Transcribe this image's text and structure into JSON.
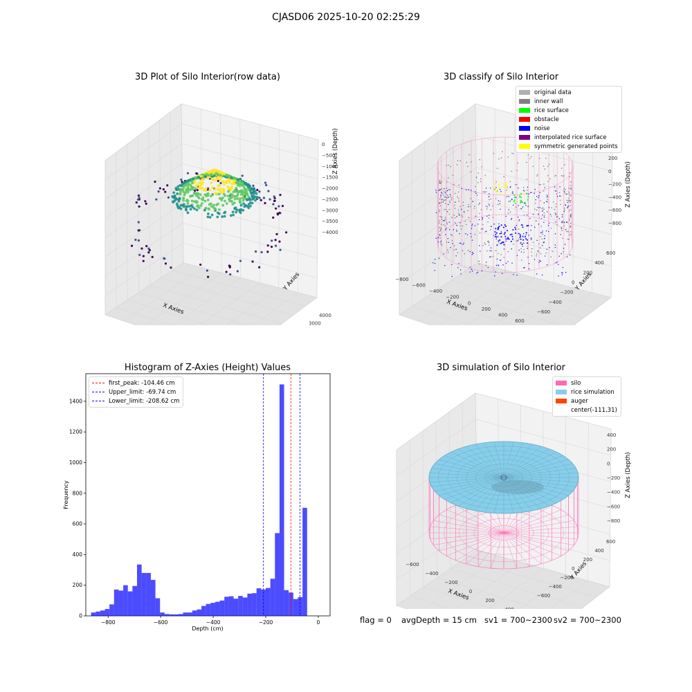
{
  "suptitle": "CJASD06 2025-10-20 02:25:29",
  "panel_raw": {
    "title": "3D Plot of Silo Interior(row data)",
    "xlabel": "X Axies",
    "ylabel": "Y Axies",
    "zlabel": "Z Axies (Depth)",
    "xticks": [
      "−4000",
      "−3000",
      "−2000",
      "−1000",
      "0",
      "1000",
      "2000",
      "3000"
    ],
    "yticks": [
      "−3000",
      "−2000",
      "−1000",
      "0",
      "1000",
      "2000",
      "3000",
      "4000"
    ],
    "zticks": [
      "0",
      "−500",
      "−1000",
      "−1500",
      "−2000",
      "−2500",
      "−3000",
      "−3500",
      "−4000"
    ],
    "colormap": [
      "#440154",
      "#3b528b",
      "#21918c",
      "#5ec962",
      "#fde725"
    ]
  },
  "panel_classify": {
    "title": "3D classify of Silo Interior",
    "xlabel": "X Axies",
    "ylabel": "Y Axies",
    "zlabel": "Z Axies (Depth)",
    "xticks": [
      "−800",
      "−600",
      "−400",
      "−200",
      "0",
      "200",
      "400",
      "600"
    ],
    "yticks": [
      "−600",
      "−400",
      "−200",
      "0",
      "200",
      "400",
      "600"
    ],
    "zticks": [
      "200",
      "0",
      "−200",
      "−400",
      "−600",
      "−800"
    ],
    "legend": [
      {
        "label": "original data",
        "color": "#b0b0b0"
      },
      {
        "label": "inner wall",
        "color": "#808080"
      },
      {
        "label": "rice surface",
        "color": "#00ff00"
      },
      {
        "label": "obstacle",
        "color": "#ff0000"
      },
      {
        "label": "noise",
        "color": "#0000ff"
      },
      {
        "label": "interpolated rice surface",
        "color": "#800080"
      },
      {
        "label": "symmetric generated points",
        "color": "#ffff00"
      }
    ]
  },
  "panel_sim": {
    "title": "3D simulation of Silo Interior",
    "xlabel": "X Axies",
    "ylabel": "Y Axies",
    "zlabel": "Z Axies (Depth)",
    "xticks": [
      "−600",
      "−400",
      "−200",
      "0",
      "200",
      "400"
    ],
    "yticks": [
      "−600",
      "−400",
      "−200",
      "0",
      "200",
      "400",
      "600"
    ],
    "zticks": [
      "400",
      "200",
      "0",
      "−200",
      "−400",
      "−600",
      "−800"
    ],
    "legend": [
      {
        "label": "silo",
        "color": "#ff69b4"
      },
      {
        "label": "rice simulation",
        "color": "#87ceeb"
      },
      {
        "label": "auger",
        "color": "#ff4500"
      },
      {
        "label": "center(-111,31)",
        "color": ""
      }
    ]
  },
  "status": {
    "flag": "flag = 0",
    "avg_depth": "avgDepth = 15 cm",
    "sv1": "sv1 = 700~2300",
    "sv2": "sv2 = 700~2300"
  },
  "chart_data": {
    "type": "bar",
    "title": "Histogram of Z-Axies (Height) Values",
    "xlabel": "Depth (cm)",
    "ylabel": "Frequency",
    "xlim": [
      -885,
      45
    ],
    "ylim": [
      0,
      1580
    ],
    "xticks": [
      -800,
      -600,
      -400,
      -200,
      0
    ],
    "xtick_labels": [
      "−800",
      "−600",
      "−400",
      "−200",
      "0"
    ],
    "yticks": [
      0,
      200,
      400,
      600,
      800,
      1000,
      1200,
      1400
    ],
    "bin_start": -865,
    "bin_width": 17.5,
    "bar_color": "#0000ff",
    "values": [
      22,
      28,
      35,
      45,
      75,
      172,
      165,
      200,
      160,
      195,
      335,
      280,
      280,
      235,
      115,
      22,
      12,
      10,
      10,
      12,
      22,
      22,
      35,
      42,
      65,
      78,
      85,
      92,
      100,
      125,
      128,
      112,
      130,
      120,
      145,
      148,
      180,
      172,
      182,
      242,
      540,
      1510,
      168,
      152,
      110,
      122,
      705
    ],
    "vlines": [
      {
        "label": "first_peak: -104.46 cm",
        "x": -104.46,
        "color": "#ff0000"
      },
      {
        "label": "Upper_limit: -69.74 cm",
        "x": -69.74,
        "color": "#0000ff"
      },
      {
        "label": "Lower_limit: -208.62 cm",
        "x": -208.62,
        "color": "#0000ff"
      }
    ]
  }
}
